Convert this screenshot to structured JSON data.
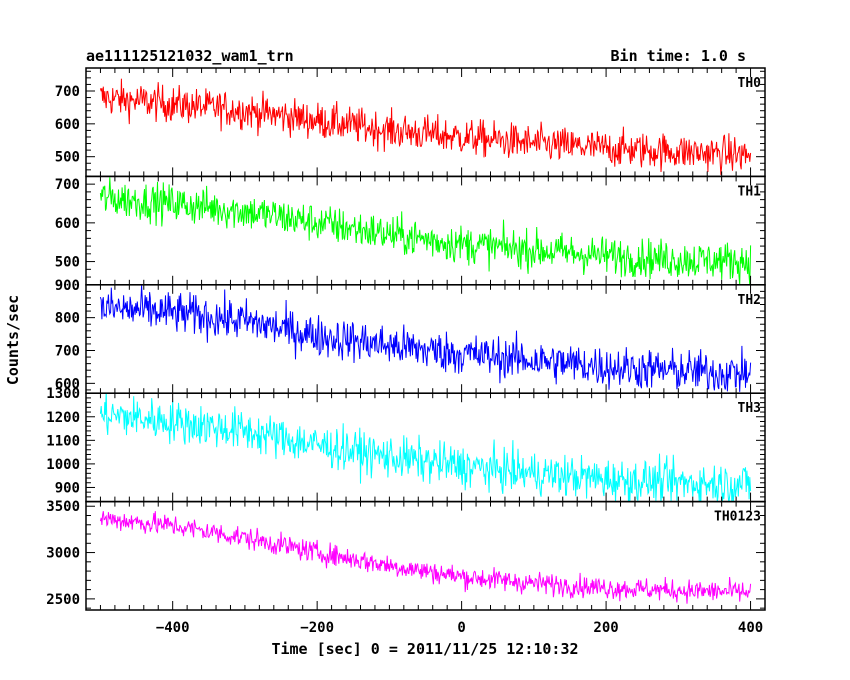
{
  "header": {
    "left_title": "ae111125121032_wam1_trn",
    "right_title": "Bin time: 1.0 s"
  },
  "chart_data": {
    "type": "line",
    "xlabel": "Time [sec] 0 = 2011/11/25 12:10:32",
    "ylabel": "Counts/sec",
    "xlim": [
      -520,
      420
    ],
    "x_range": [
      -500,
      400
    ],
    "bin_time_s": 1.0,
    "x_ticks": [
      {
        "value": -400,
        "label": "−400"
      },
      {
        "value": -200,
        "label": "−200"
      },
      {
        "value": 0,
        "label": "0"
      },
      {
        "value": 200,
        "label": "200"
      },
      {
        "value": 400,
        "label": "400"
      }
    ],
    "panels": [
      {
        "name": "TH0",
        "color": "#ff0000",
        "ylim": [
          440,
          770
        ],
        "yticks": [
          500,
          600,
          700
        ],
        "trend_x": [
          -500,
          -400,
          -300,
          -200,
          -100,
          0,
          100,
          200,
          300,
          400
        ],
        "trend_y": [
          680,
          660,
          640,
          610,
          580,
          560,
          540,
          525,
          515,
          505
        ],
        "noise": 28
      },
      {
        "name": "TH1",
        "color": "#00ff00",
        "ylim": [
          440,
          720
        ],
        "yticks": [
          500,
          600,
          700
        ],
        "trend_x": [
          -500,
          -400,
          -300,
          -200,
          -100,
          0,
          100,
          200,
          300,
          400
        ],
        "trend_y": [
          665,
          650,
          630,
          600,
          570,
          545,
          530,
          515,
          505,
          500
        ],
        "noise": 25
      },
      {
        "name": "TH2",
        "color": "#0000ff",
        "ylim": [
          570,
          900
        ],
        "yticks": [
          600,
          700,
          800,
          900
        ],
        "trend_x": [
          -500,
          -400,
          -300,
          -200,
          -100,
          0,
          100,
          200,
          300,
          400
        ],
        "trend_y": [
          830,
          815,
          790,
          745,
          715,
          690,
          670,
          650,
          638,
          630
        ],
        "noise": 32
      },
      {
        "name": "TH3",
        "color": "#00ffff",
        "ylim": [
          840,
          1300
        ],
        "yticks": [
          900,
          1000,
          1100,
          1200,
          1300
        ],
        "trend_x": [
          -500,
          -400,
          -300,
          -200,
          -100,
          0,
          100,
          200,
          300,
          400
        ],
        "trend_y": [
          1210,
          1180,
          1140,
          1080,
          1030,
          990,
          960,
          935,
          920,
          915
        ],
        "noise": 45
      },
      {
        "name": "TH0123",
        "color": "#ff00ff",
        "ylim": [
          2380,
          3550
        ],
        "yticks": [
          2500,
          3000,
          3500
        ],
        "trend_x": [
          -500,
          -400,
          -300,
          -200,
          -100,
          0,
          100,
          200,
          300,
          400
        ],
        "trend_y": [
          3370,
          3290,
          3160,
          3000,
          2860,
          2740,
          2670,
          2620,
          2590,
          2570
        ],
        "noise": 60
      }
    ]
  }
}
